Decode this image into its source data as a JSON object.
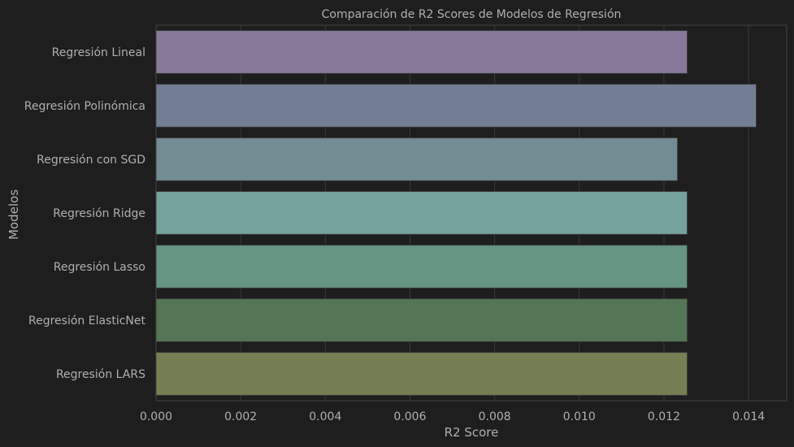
{
  "chart_data": {
    "type": "bar",
    "orientation": "horizontal",
    "title": "Comparación de R2 Scores de Modelos de Regresión",
    "xlabel": "R2 Score",
    "ylabel": "Modelos",
    "xlim": [
      0,
      0.0149
    ],
    "xticks": [
      0.0,
      0.002,
      0.004,
      0.006,
      0.008,
      0.01,
      0.012,
      0.014
    ],
    "xtick_labels": [
      "0.000",
      "0.002",
      "0.004",
      "0.006",
      "0.008",
      "0.010",
      "0.012",
      "0.014"
    ],
    "grid": true,
    "categories": [
      "Regresión Lineal",
      "Regresión Polinómica",
      "Regresión con SGD",
      "Regresión Ridge",
      "Regresión Lasso",
      "Regresión ElasticNet",
      "Regresión LARS"
    ],
    "values": [
      0.01255,
      0.01418,
      0.01232,
      0.01255,
      0.01255,
      0.01255,
      0.01255
    ],
    "colors": [
      "#877a9b",
      "#737d94",
      "#738b92",
      "#75a39c",
      "#679583",
      "#557557",
      "#757f54"
    ],
    "background": "#1e1e1e",
    "spine_color": "#444444",
    "grid_color": "#3a3a3a",
    "text_color": "#b0b0b0"
  }
}
